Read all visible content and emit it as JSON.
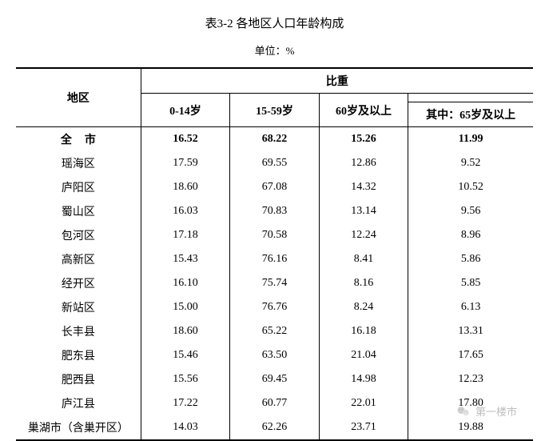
{
  "title": "表3-2  各地区人口年龄构成",
  "unit": "单位：%",
  "header": {
    "region": "地区",
    "proportion": "比重",
    "col1": "0-14岁",
    "col2": "15-59岁",
    "col3": "60岁及以上",
    "col4": "其中：65岁及以上"
  },
  "total_row": {
    "region": "全市",
    "c1": "16.52",
    "c2": "68.22",
    "c3": "15.26",
    "c4": "11.99"
  },
  "rows": [
    {
      "region": "瑶海区",
      "c1": "17.59",
      "c2": "69.55",
      "c3": "12.86",
      "c4": "9.52"
    },
    {
      "region": "庐阳区",
      "c1": "18.60",
      "c2": "67.08",
      "c3": "14.32",
      "c4": "10.52"
    },
    {
      "region": "蜀山区",
      "c1": "16.03",
      "c2": "70.83",
      "c3": "13.14",
      "c4": "9.56"
    },
    {
      "region": "包河区",
      "c1": "17.18",
      "c2": "70.58",
      "c3": "12.24",
      "c4": "8.96"
    },
    {
      "region": "高新区",
      "c1": "15.43",
      "c2": "76.16",
      "c3": "8.41",
      "c4": "5.86"
    },
    {
      "region": "经开区",
      "c1": "16.10",
      "c2": "75.74",
      "c3": "8.16",
      "c4": "5.85"
    },
    {
      "region": "新站区",
      "c1": "15.00",
      "c2": "76.76",
      "c3": "8.24",
      "c4": "6.13"
    },
    {
      "region": "长丰县",
      "c1": "18.60",
      "c2": "65.22",
      "c3": "16.18",
      "c4": "13.31"
    },
    {
      "region": "肥东县",
      "c1": "15.46",
      "c2": "63.50",
      "c3": "21.04",
      "c4": "17.65"
    },
    {
      "region": "肥西县",
      "c1": "15.56",
      "c2": "69.45",
      "c3": "14.98",
      "c4": "12.23"
    },
    {
      "region": "庐江县",
      "c1": "17.22",
      "c2": "60.77",
      "c3": "22.01",
      "c4": "17.80"
    },
    {
      "region": "巢湖市（含巢开区）",
      "c1": "14.03",
      "c2": "62.26",
      "c3": "23.71",
      "c4": "19.88"
    }
  ],
  "watermark_text": "第一楼市",
  "colors": {
    "background": "#ffffff",
    "text": "#000000",
    "border": "#000000",
    "watermark": "#888888"
  },
  "typography": {
    "title_fontsize": 15,
    "unit_fontsize": 13,
    "body_fontsize": 14,
    "font_family": "SimSun"
  },
  "table_style": {
    "outer_border_width": 2,
    "inner_border_width": 1
  }
}
